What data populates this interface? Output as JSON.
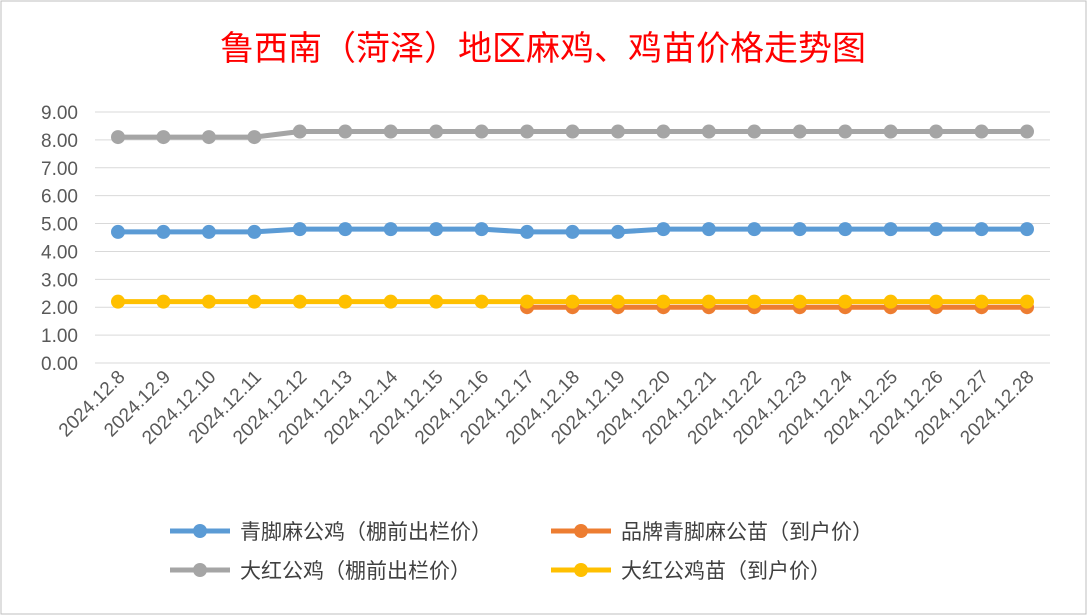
{
  "chart_data": {
    "type": "line",
    "title": "鲁西南（菏泽）地区麻鸡、鸡苗价格走势图",
    "categories": [
      "2024.12.8",
      "2024.12.9",
      "2024.12.10",
      "2024.12.11",
      "2024.12.12",
      "2024.12.13",
      "2024.12.14",
      "2024.12.15",
      "2024.12.16",
      "2024.12.17",
      "2024.12.18",
      "2024.12.19",
      "2024.12.20",
      "2024.12.21",
      "2024.12.22",
      "2024.12.23",
      "2024.12.24",
      "2024.12.25",
      "2024.12.26",
      "2024.12.27",
      "2024.12.28"
    ],
    "ylim": [
      0,
      9
    ],
    "yticks": [
      "0.00",
      "1.00",
      "2.00",
      "3.00",
      "4.00",
      "5.00",
      "6.00",
      "7.00",
      "8.00",
      "9.00"
    ],
    "grid": true,
    "legend_position": "bottom",
    "series": [
      {
        "name": "青脚麻公鸡（棚前出栏价）",
        "color": "#5b9bd5",
        "values": [
          4.7,
          4.7,
          4.7,
          4.7,
          4.8,
          4.8,
          4.8,
          4.8,
          4.8,
          4.7,
          4.7,
          4.7,
          4.8,
          4.8,
          4.8,
          4.8,
          4.8,
          4.8,
          4.8,
          4.8,
          4.8
        ]
      },
      {
        "name": "品牌青脚麻公苗（到户价）",
        "color": "#ed7d31",
        "values": [
          null,
          null,
          null,
          null,
          null,
          null,
          null,
          null,
          null,
          2.0,
          2.0,
          2.0,
          2.0,
          2.0,
          2.0,
          2.0,
          2.0,
          2.0,
          2.0,
          2.0,
          2.0
        ]
      },
      {
        "name": "大红公鸡（棚前出栏价）",
        "color": "#a5a5a5",
        "values": [
          8.1,
          8.1,
          8.1,
          8.1,
          8.3,
          8.3,
          8.3,
          8.3,
          8.3,
          8.3,
          8.3,
          8.3,
          8.3,
          8.3,
          8.3,
          8.3,
          8.3,
          8.3,
          8.3,
          8.3,
          8.3
        ]
      },
      {
        "name": "大红公鸡苗（到户价）",
        "color": "#ffc000",
        "values": [
          2.2,
          2.2,
          2.2,
          2.2,
          2.2,
          2.2,
          2.2,
          2.2,
          2.2,
          2.2,
          2.2,
          2.2,
          2.2,
          2.2,
          2.2,
          2.2,
          2.2,
          2.2,
          2.2,
          2.2,
          2.2
        ]
      }
    ],
    "legend_order": [
      0,
      1,
      2,
      3
    ]
  }
}
